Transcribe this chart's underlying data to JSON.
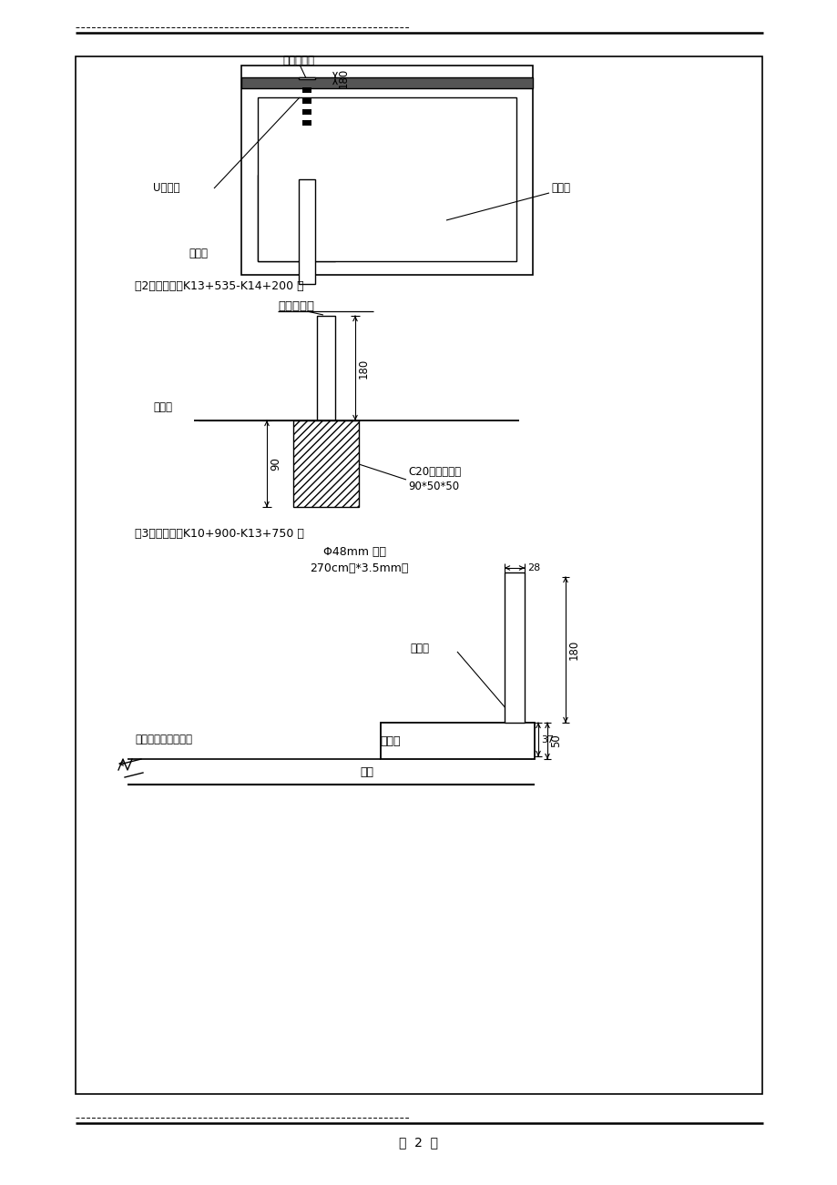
{
  "bg_color": "#ffffff",
  "fig_width": 9.2,
  "fig_height": 13.02,
  "section1_label": "（2）线路左侧K13+535-K14+200 段",
  "section2_label": "（3）线路右侧K10+900-K13+750 段",
  "text_hnt_1": "混凝土立柱",
  "text_ujian": "U型扣件",
  "text_dlc": "电缆槽",
  "text_ysc": "引水渠",
  "text_hnt_2": "混凝土立柱",
  "text_dmx": "地面线",
  "text_C20": "C20混凝土基础",
  "text_905050": "90*50*50",
  "text_gangguan": "Φ48mm 锂管",
  "text_270cm": "270cm高*3.5mm厚",
  "text_gjz": "钒轨桩",
  "text_tongzhan": "通站公路混凝土路面",
  "text_yingjian": "硬路肩",
  "text_tuji": "土基",
  "footer_text": "第  2  页"
}
